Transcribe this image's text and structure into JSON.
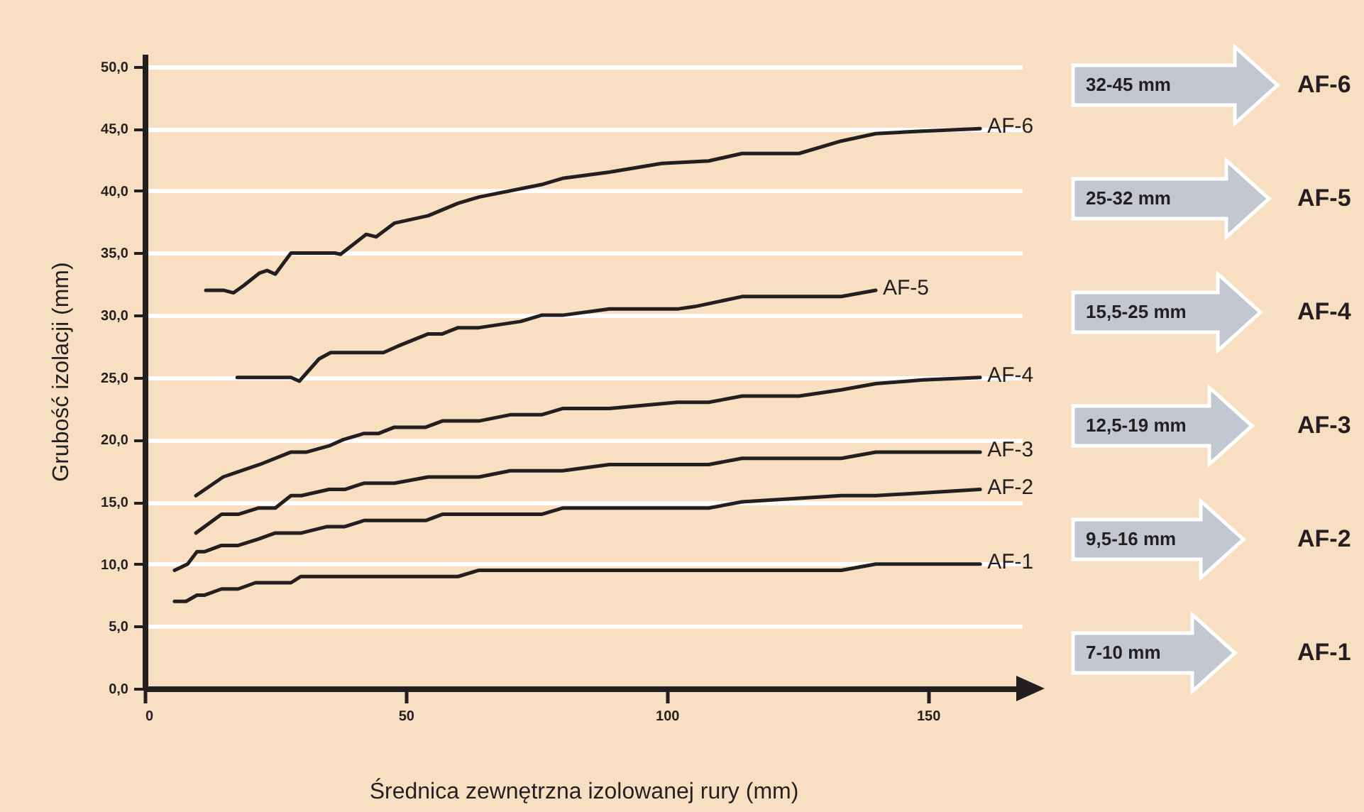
{
  "chart_data": {
    "type": "line",
    "xlabel": "Średnica zewnętrzna izolowanej rury (mm)",
    "ylabel": "Grubość izolacji (mm)",
    "xlim": [
      0,
      168
    ],
    "xticks": [
      0,
      50,
      100,
      150
    ],
    "ylim": [
      0,
      51
    ],
    "yticks": [
      {
        "value": 0,
        "label": "0,0"
      },
      {
        "value": 5,
        "label": "5,0"
      },
      {
        "value": 10,
        "label": "10,0"
      },
      {
        "value": 15,
        "label": "15,0"
      },
      {
        "value": 20,
        "label": "20,0"
      },
      {
        "value": 25,
        "label": "25,0"
      },
      {
        "value": 30,
        "label": "30,0"
      },
      {
        "value": 35,
        "label": "35,0"
      },
      {
        "value": 40,
        "label": "40,0"
      },
      {
        "value": 45,
        "label": "45,0"
      },
      {
        "value": 50,
        "label": "50,0"
      }
    ],
    "grid": "y",
    "legend": false,
    "marker": "none",
    "line_style": "solid",
    "series": [
      {
        "name": "AF-1",
        "color": "#231f20",
        "x": [
          5.7,
          7.9,
          10,
          11.4,
          14.7,
          17.9,
          21.2,
          28,
          29.9,
          60,
          64,
          133.4,
          140,
          160
        ],
        "values": [
          7,
          7,
          7.5,
          7.5,
          8,
          8,
          8.5,
          8.5,
          9,
          9,
          9.5,
          9.5,
          10,
          10
        ]
      },
      {
        "name": "AF-2",
        "color": "#231f20",
        "x": [
          5.7,
          8.2,
          10,
          11.5,
          14.7,
          17.9,
          21.7,
          25,
          30,
          34.8,
          38.2,
          42,
          53.8,
          57,
          76,
          80,
          108,
          114.4,
          133.4,
          140,
          160
        ],
        "values": [
          9.5,
          10,
          11,
          11,
          11.5,
          11.5,
          12,
          12.5,
          12.5,
          13,
          13,
          13.5,
          13.5,
          14,
          14,
          14.5,
          14.5,
          15,
          15.5,
          15.5,
          16
        ]
      },
      {
        "name": "AF-3",
        "color": "#231f20",
        "x": [
          9.8,
          14.7,
          17.9,
          21.7,
          25,
          28,
          30,
          35.3,
          38.3,
          42,
          47.8,
          54.3,
          64,
          70,
          80,
          89,
          108,
          114.4,
          133.4,
          140,
          160
        ],
        "values": [
          12.5,
          14,
          14,
          14.5,
          14.5,
          15.5,
          15.5,
          16,
          16,
          16.5,
          16.5,
          17,
          17,
          17.5,
          17.5,
          18,
          18,
          18.5,
          18.5,
          19,
          19
        ]
      },
      {
        "name": "AF-4",
        "color": "#231f20",
        "x": [
          9.8,
          15,
          18.5,
          22,
          28,
          31,
          35.3,
          38,
          42,
          44.8,
          47.8,
          53.8,
          57,
          64,
          70,
          76,
          80,
          89,
          102,
          108,
          114.4,
          125.3,
          133.4,
          140,
          149,
          160
        ],
        "values": [
          15.5,
          17,
          17.5,
          18,
          19,
          19,
          19.5,
          20,
          20.5,
          20.5,
          21,
          21,
          21.5,
          21.5,
          22,
          22,
          22.5,
          22.5,
          23,
          23,
          23.5,
          23.5,
          24,
          24.5,
          24.8,
          25
        ]
      },
      {
        "name": "AF-5",
        "color": "#231f20",
        "x": [
          17.7,
          28,
          29.6,
          33.4,
          35.6,
          45.7,
          48.4,
          54.3,
          57,
          60,
          64,
          72,
          76,
          80,
          89,
          102,
          105.4,
          114.4,
          133.4,
          140
        ],
        "values": [
          25,
          25,
          24.7,
          26.5,
          27,
          27,
          27.5,
          28.5,
          28.5,
          29,
          29,
          29.5,
          30,
          30,
          30.5,
          30.5,
          30.7,
          31.5,
          31.5,
          32
        ]
      },
      {
        "name": "AF-6",
        "color": "#231f20",
        "x": [
          11.7,
          15.2,
          17,
          19,
          22,
          23.4,
          25,
          28,
          36.4,
          37.5,
          42.4,
          44.3,
          47.8,
          54.3,
          60,
          64,
          76,
          80,
          89,
          99,
          108,
          114.4,
          125.3,
          133.4,
          140,
          149,
          160
        ],
        "values": [
          32,
          32,
          31.8,
          32.4,
          33.4,
          33.6,
          33.3,
          35,
          35,
          34.9,
          36.5,
          36.3,
          37.4,
          38,
          39,
          39.5,
          40.5,
          41,
          41.5,
          42.2,
          42.4,
          43,
          43,
          44,
          44.6,
          44.8,
          45
        ]
      }
    ],
    "annotations": [
      "32-45 mm",
      "AF-6",
      "25-32 mm",
      "AF-5",
      "15,5-25 mm",
      "AF-4",
      "12,5-19 mm",
      "AF-3",
      "9,5-16 mm",
      "AF-2",
      "7-10 mm",
      "AF-1"
    ]
  }
}
